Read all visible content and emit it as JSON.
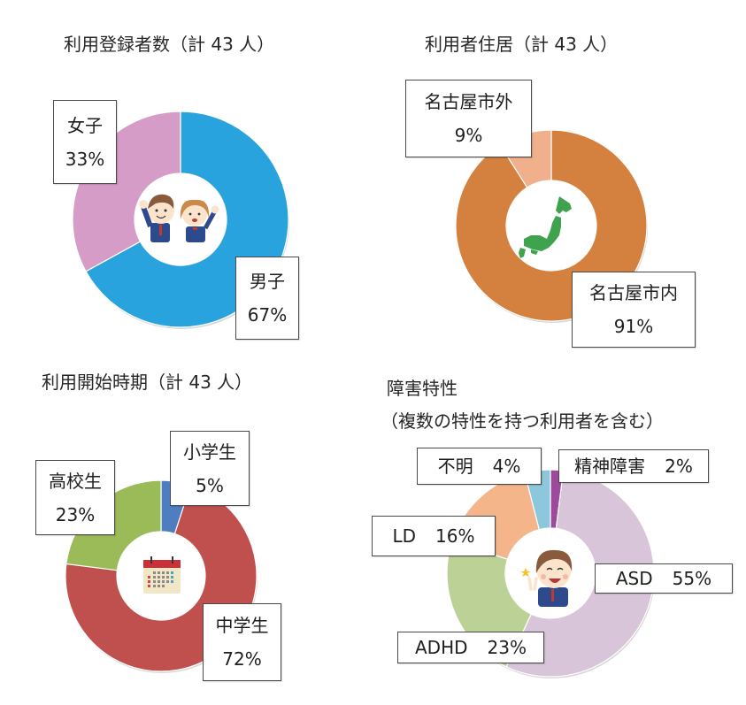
{
  "chart_data": [
    {
      "type": "pie",
      "subtype": "donut",
      "title": "利用登録者数（計 43 人）",
      "categories": [
        "男子",
        "女子"
      ],
      "values": [
        67,
        33
      ],
      "unit": "%",
      "colors": [
        "#29a3dd",
        "#d49cc7"
      ],
      "center_icon": "students-illustration-icon",
      "labels": [
        {
          "name": "男子",
          "value": "67%"
        },
        {
          "name": "女子",
          "value": "33%"
        }
      ]
    },
    {
      "type": "pie",
      "subtype": "donut",
      "title": "利用者住居（計 43 人）",
      "categories": [
        "名古屋市内",
        "名古屋市外"
      ],
      "values": [
        91,
        9
      ],
      "unit": "%",
      "colors": [
        "#d4813f",
        "#f0b08c"
      ],
      "center_icon": "japan-map-icon",
      "labels": [
        {
          "name": "名古屋市内",
          "value": "91%"
        },
        {
          "name": "名古屋市外",
          "value": "9%"
        }
      ]
    },
    {
      "type": "pie",
      "subtype": "donut",
      "title": "利用開始時期（計 43 人）",
      "categories": [
        "小学生",
        "中学生",
        "高校生"
      ],
      "values": [
        5,
        72,
        23
      ],
      "unit": "%",
      "colors": [
        "#4e7ebf",
        "#bf504d",
        "#9bbb59"
      ],
      "center_icon": "calendar-icon",
      "labels": [
        {
          "name": "小学生",
          "value": "5%"
        },
        {
          "name": "中学生",
          "value": "72%"
        },
        {
          "name": "高校生",
          "value": "23%"
        }
      ]
    },
    {
      "type": "pie",
      "subtype": "donut",
      "title": "障害特性",
      "subtitle": "（複数の特性を持つ利用者を含む）",
      "categories": [
        "精神障害",
        "ASD",
        "ADHD",
        "LD",
        "不明"
      ],
      "values": [
        2,
        55,
        23,
        16,
        4
      ],
      "unit": "%",
      "colors": [
        "#9e4a9c",
        "#d9c5da",
        "#bcd196",
        "#f4b58b",
        "#8cc7db"
      ],
      "center_icon": "boy-peace-sign-icon",
      "labels": [
        {
          "name": "精神障害",
          "value": "2%"
        },
        {
          "name": "ASD",
          "value": "55%"
        },
        {
          "name": "ADHD",
          "value": "23%"
        },
        {
          "name": "LD",
          "value": "16%"
        },
        {
          "name": "不明",
          "value": "4%"
        }
      ]
    }
  ]
}
